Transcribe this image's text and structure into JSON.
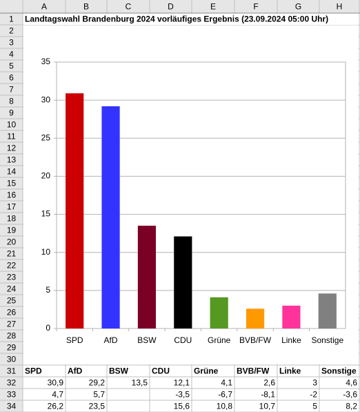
{
  "sheet": {
    "title": "Landtagswahl Brandenburg 2024 vorläufiges Ergebnis (23.09.2024 05:00 Uhr)",
    "columns": [
      "A",
      "B",
      "C",
      "D",
      "E",
      "F",
      "G",
      "H"
    ],
    "row_numbers": [
      1,
      2,
      3,
      4,
      5,
      6,
      7,
      8,
      9,
      10,
      11,
      12,
      13,
      14,
      15,
      16,
      17,
      18,
      19,
      20,
      21,
      22,
      23,
      24,
      25,
      26,
      27,
      28,
      29,
      30,
      31,
      32,
      33,
      34
    ],
    "header": [
      "SPD",
      "AfD",
      "BSW",
      "CDU",
      "Grüne",
      "BVB/FW",
      "Linke",
      "Sonstige"
    ],
    "rows": [
      [
        "30,9",
        "29,2",
        "13,5",
        "12,1",
        "4,1",
        "2,6",
        "3",
        "4,6"
      ],
      [
        "4,7",
        "5,7",
        null,
        "-3,5",
        "-6,7",
        "-8,1",
        "-2",
        "-3,6"
      ],
      [
        "26,2",
        "23,5",
        null,
        "15,6",
        "10,8",
        "10,7",
        "5",
        "8,2"
      ]
    ]
  },
  "chart_data": {
    "type": "bar",
    "categories": [
      "SPD",
      "AfD",
      "BSW",
      "CDU",
      "Grüne",
      "BVB/FW",
      "Linke",
      "Sonstige"
    ],
    "values": [
      30.9,
      29.2,
      13.5,
      12.1,
      4.1,
      2.6,
      3,
      4.6
    ],
    "colors": [
      "#cc0000",
      "#3333ff",
      "#7a0026",
      "#000000",
      "#559922",
      "#ff9900",
      "#ff3399",
      "#808080"
    ],
    "ylim": [
      0,
      35
    ],
    "yticks": [
      0,
      5,
      10,
      15,
      20,
      25,
      30,
      35
    ],
    "grid": true
  }
}
